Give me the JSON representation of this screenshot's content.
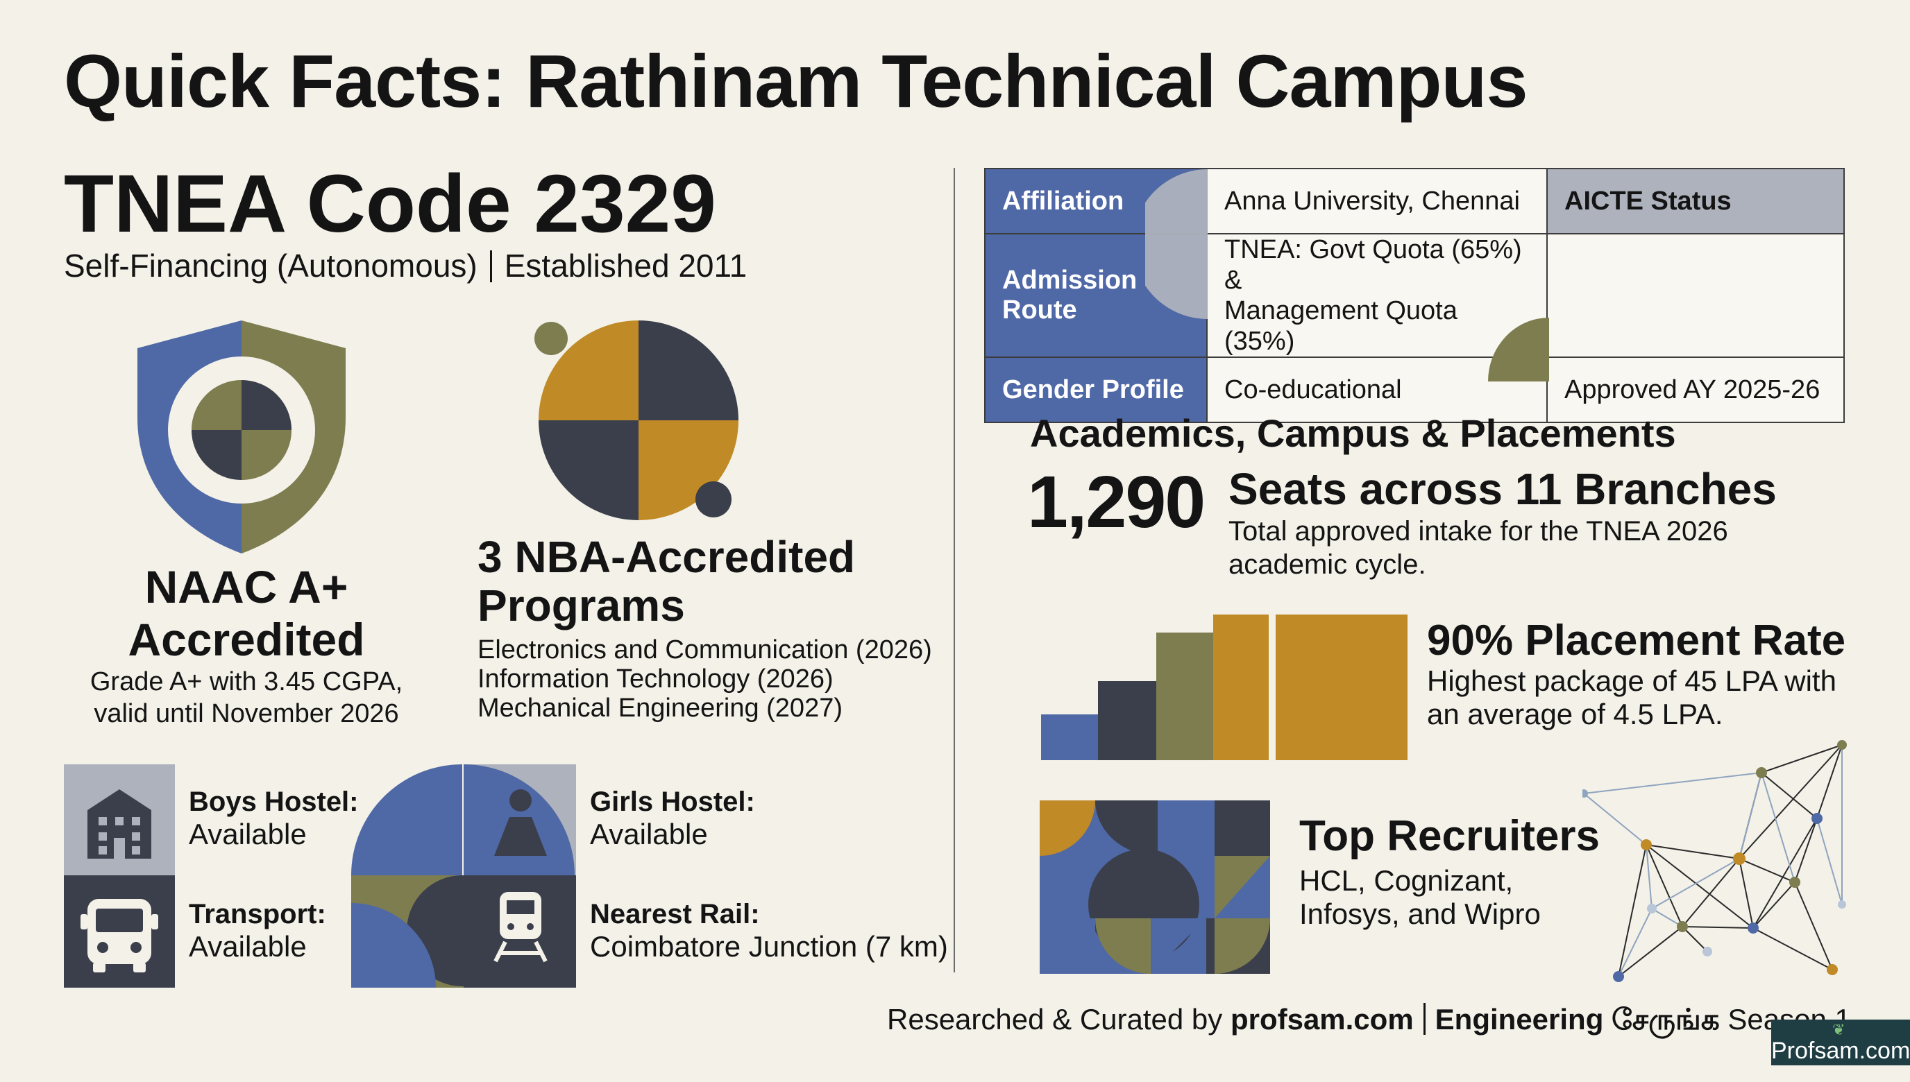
{
  "title": "Quick Facts: Rathinam Technical Campus",
  "tnea": {
    "code": "TNEA Code 2329",
    "subtitle_left": "Self-Financing (Autonomous)",
    "subtitle_right": "Established 2011"
  },
  "naac": {
    "title_line1": "NAAC A+",
    "title_line2": "Accredited",
    "desc_line1": "Grade A+ with 3.45 CGPA,",
    "desc_line2": "valid until November 2026",
    "icon": "shield-icon"
  },
  "nba": {
    "title_line1": "3 NBA-Accredited",
    "title_line2": "Programs",
    "programs": [
      "Electronics and Communication (2026)",
      "Information Technology (2026)",
      "Mechanical Engineering (2027)"
    ],
    "icon": "quartered-circle-icon"
  },
  "facilities": [
    {
      "label": "Boys Hostel:",
      "value": "Available",
      "icon": "building-icon"
    },
    {
      "label": "Girls Hostel:",
      "value": "Available",
      "icon": "person-icon"
    },
    {
      "label": "Transport:",
      "value": "Available",
      "icon": "bus-icon"
    },
    {
      "label": "Nearest Rail:",
      "value": "Coimbatore Junction (7 km)",
      "icon": "train-icon"
    }
  ],
  "info_table": {
    "affiliation_label": "Affiliation",
    "affiliation_value": "Anna University, Chennai",
    "admission_label_line1": "Admission",
    "admission_label_line2": "Route",
    "admission_value_line1": "TNEA: Govt Quota (65%) &",
    "admission_value_line2": "Management Quota (35%)",
    "gender_label": "Gender Profile",
    "gender_value": "Co-educational",
    "aicte_label": "AICTE Status",
    "aicte_value": "Approved AY 2025-26"
  },
  "academics": {
    "heading": "Academics, Campus & Placements",
    "seats_number": "1,290",
    "seats_heading": "Seats across 11 Branches",
    "seats_desc": "Total approved intake for the TNEA 2026 academic cycle.",
    "placement_heading": "90% Placement Rate",
    "placement_desc": "Highest package of 45 LPA with an average of 4.5 LPA.",
    "recruiters_heading": "Top Recruiters",
    "recruiters_desc_line1": "HCL, Cognizant,",
    "recruiters_desc_line2": "Infosys, and Wipro"
  },
  "footer": {
    "prefix": "Researched & Curated by ",
    "site": "profsam.com",
    "series": "Engineering சேருங்க",
    "season": " Season 1",
    "badge": "Profsam.com"
  },
  "colors": {
    "background": "#f3f1e8",
    "blue": "#4f68a6",
    "olive": "#7d7d50",
    "gold": "#c08a26",
    "slate": "#3b3f4c",
    "grey": "#adb2bc"
  }
}
